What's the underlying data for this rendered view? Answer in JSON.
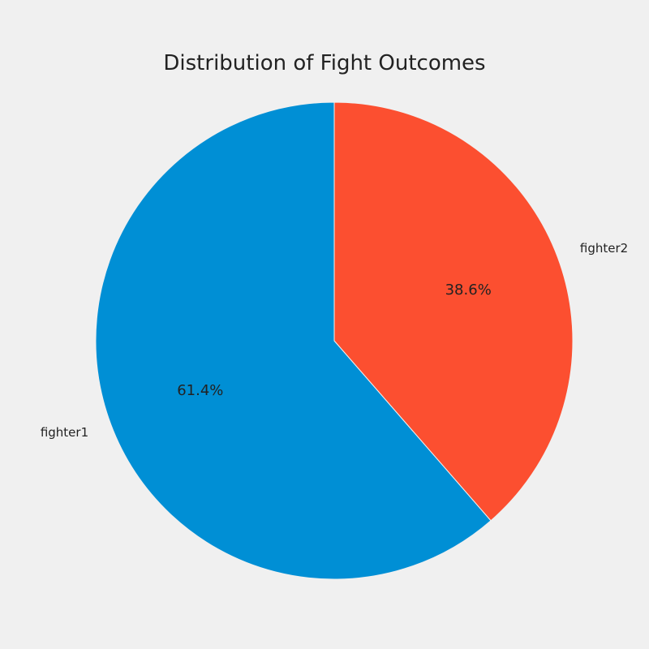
{
  "chart_data": {
    "type": "pie",
    "title": "Distribution of Fight Outcomes",
    "categories": [
      "fighter1",
      "fighter2"
    ],
    "values": [
      61.4,
      38.6
    ],
    "value_labels": [
      "61.4%",
      "38.6%"
    ],
    "colors": [
      "#008fd5",
      "#fc4f30"
    ],
    "start_angle_deg": 90,
    "direction": "counterclockwise",
    "legend": "none"
  }
}
